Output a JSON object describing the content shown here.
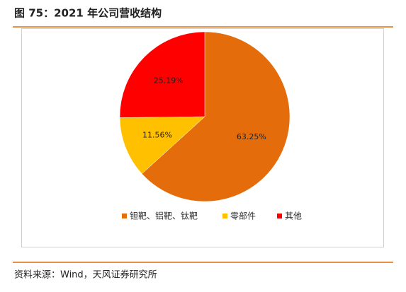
{
  "chart_data": {
    "type": "pie",
    "title": "图 75：2021 年公司营收结构",
    "categories": [
      "钽靶、铝靶、钛靶",
      "零部件",
      "其他"
    ],
    "values": [
      63.25,
      11.56,
      25.19
    ],
    "value_labels": [
      "63.25%",
      "11.56%",
      "25.19%"
    ],
    "colors": [
      "#e46c0a",
      "#ffc000",
      "#ff0000"
    ],
    "legend": "bottom",
    "source": "资料来源：Wind，天风证券研究所"
  }
}
